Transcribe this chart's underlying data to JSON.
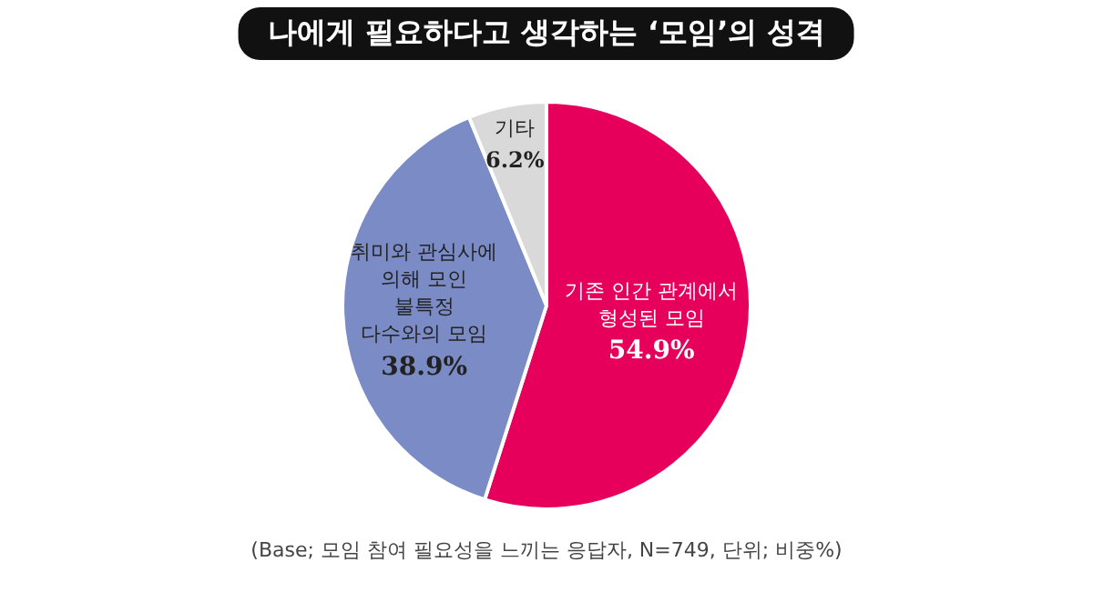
{
  "chart_data": {
    "type": "pie",
    "title": "나에게 필요하다고 생각하는 ‘모임’의 성격",
    "categories": [
      "기존 인간 관계에서\n형성된 모임",
      "취미와 관심사에\n의해 모인\n불특정\n다수와의 모임",
      "기타"
    ],
    "values": [
      54.9,
      38.9,
      6.2
    ],
    "colors": [
      "#e6005c",
      "#7b8bc6",
      "#d9d9d9"
    ],
    "value_labels": [
      "54.9%",
      "38.9%",
      "6.2%"
    ],
    "legend": false,
    "annotations": [
      "(Base; 모임 참여 필요성을 느끼는 응답자, N=749, 단위; 비중%)"
    ]
  }
}
